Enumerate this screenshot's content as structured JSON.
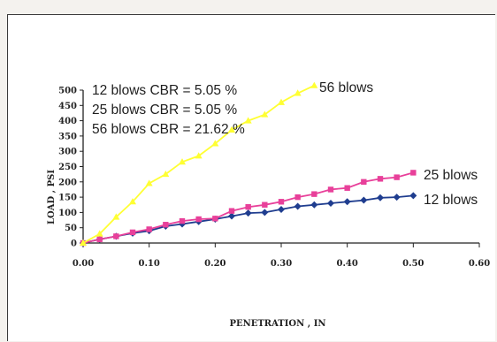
{
  "chart_data": {
    "type": "line",
    "xlabel": "PENETRATION , IN",
    "ylabel": "LOAD , PSI",
    "xlim": [
      0,
      0.6
    ],
    "ylim": [
      0,
      500
    ],
    "x_ticks": [
      "0.00",
      "0.10",
      "0.20",
      "0.30",
      "0.40",
      "0.50",
      "0.60"
    ],
    "y_ticks": [
      "0",
      "50",
      "100",
      "150",
      "200",
      "250",
      "300",
      "350",
      "400",
      "450",
      "500"
    ],
    "grid": false,
    "annotations": [
      "12 blows CBR = 5.05 %",
      "25 blows CBR = 5.05 %",
      "56 blows CBR = 21.62 %"
    ],
    "series": [
      {
        "name": "56 blows",
        "color": "#ffff33",
        "marker": "triangle",
        "x": [
          0,
          0.025,
          0.05,
          0.075,
          0.1,
          0.125,
          0.15,
          0.175,
          0.2,
          0.225,
          0.25,
          0.275,
          0.3,
          0.325,
          0.35
        ],
        "y": [
          0,
          30,
          85,
          135,
          195,
          225,
          265,
          285,
          325,
          370,
          400,
          420,
          460,
          490,
          515
        ]
      },
      {
        "name": "25 blows",
        "color": "#e8409a",
        "marker": "square",
        "x": [
          0,
          0.025,
          0.05,
          0.075,
          0.1,
          0.125,
          0.15,
          0.175,
          0.2,
          0.225,
          0.25,
          0.275,
          0.3,
          0.325,
          0.35,
          0.375,
          0.4,
          0.425,
          0.45,
          0.475,
          0.5
        ],
        "y": [
          0,
          12,
          22,
          35,
          45,
          60,
          72,
          78,
          80,
          105,
          118,
          125,
          135,
          150,
          160,
          175,
          180,
          200,
          210,
          215,
          230
        ]
      },
      {
        "name": "12 blows",
        "color": "#1f3d8f",
        "marker": "diamond",
        "x": [
          0,
          0.025,
          0.05,
          0.075,
          0.1,
          0.125,
          0.15,
          0.175,
          0.2,
          0.225,
          0.25,
          0.275,
          0.3,
          0.325,
          0.35,
          0.375,
          0.4,
          0.425,
          0.45,
          0.475,
          0.5
        ],
        "y": [
          0,
          12,
          22,
          32,
          40,
          55,
          62,
          70,
          78,
          88,
          98,
          100,
          110,
          120,
          125,
          130,
          135,
          140,
          148,
          150,
          155
        ]
      }
    ]
  }
}
